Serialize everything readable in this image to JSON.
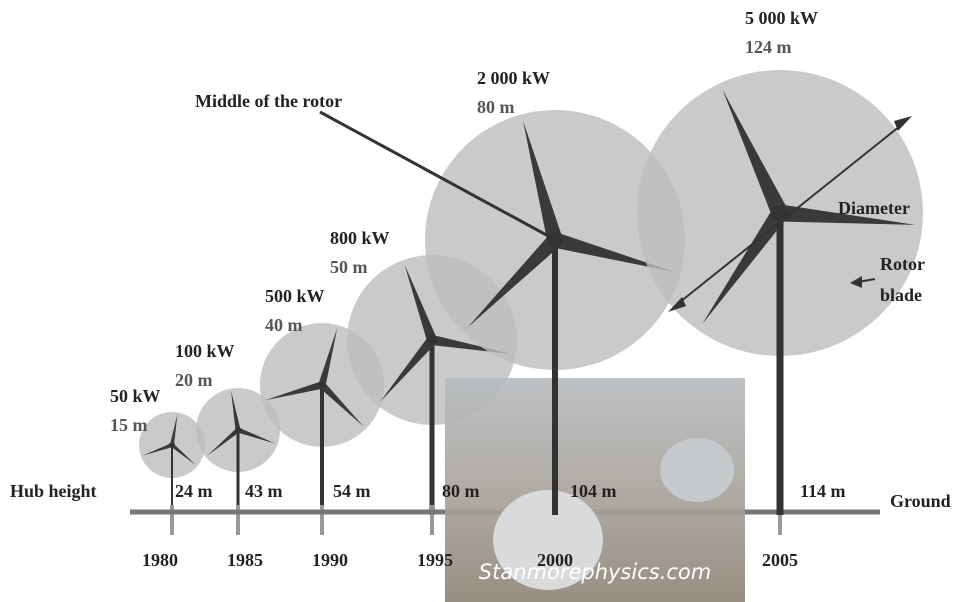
{
  "turbines": [
    {
      "power": "50 kW",
      "diameter": "15 m",
      "hub_height": "24 m",
      "year": "1980"
    },
    {
      "power": "100 kW",
      "diameter": "20 m",
      "hub_height": "43 m",
      "year": "1985"
    },
    {
      "power": "500 kW",
      "diameter": "40 m",
      "hub_height": "54 m",
      "year": "1990"
    },
    {
      "power": "800 kW",
      "diameter": "50 m",
      "hub_height": "80 m",
      "year": "1995"
    },
    {
      "power": "2 000 kW",
      "diameter": "80 m",
      "hub_height": "104 m",
      "year": "2000"
    },
    {
      "power": "5 000 kW",
      "diameter": "124 m",
      "hub_height": "114 m",
      "year": "2005"
    }
  ],
  "labels": {
    "middle_of_rotor": "Middle of the rotor",
    "diameter": "Diameter",
    "rotor": "Rotor",
    "blade": "blade",
    "hub_height": "Hub height",
    "ground": "Ground"
  },
  "watermark": "Stanmorephysics.com"
}
